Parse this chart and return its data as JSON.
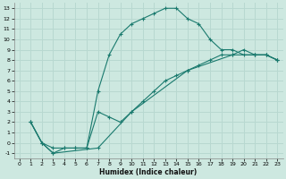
{
  "xlabel": "Humidex (Indice chaleur)",
  "bg_color": "#cde8e0",
  "grid_color": "#b8d8d0",
  "line_color": "#1a7a6e",
  "xlim": [
    -0.5,
    23.5
  ],
  "ylim": [
    -1.5,
    13.5
  ],
  "xticks": [
    0,
    1,
    2,
    3,
    4,
    5,
    6,
    7,
    8,
    9,
    10,
    11,
    12,
    13,
    14,
    15,
    16,
    17,
    18,
    19,
    20,
    21,
    22,
    23
  ],
  "yticks": [
    -1,
    0,
    1,
    2,
    3,
    4,
    5,
    6,
    7,
    8,
    9,
    10,
    11,
    12,
    13
  ],
  "curve1_x": [
    1,
    2,
    3,
    4,
    5,
    6,
    7,
    8,
    9,
    10,
    11,
    12,
    13,
    14,
    15,
    16,
    17,
    18,
    19,
    20,
    21,
    22,
    23
  ],
  "curve1_y": [
    2,
    0,
    -0.5,
    -0.5,
    -0.5,
    -0.5,
    5,
    8.5,
    10.5,
    11.5,
    12,
    12.5,
    13,
    13,
    12,
    11.5,
    10,
    9,
    9,
    8.5,
    8.5,
    8.5,
    8
  ],
  "curve2_x": [
    1,
    2,
    3,
    4,
    5,
    6,
    7,
    8,
    9,
    10,
    11,
    12,
    13,
    14,
    15,
    16,
    17,
    18,
    19,
    20,
    21,
    22,
    23
  ],
  "curve2_y": [
    2,
    0,
    -1,
    -0.5,
    -0.5,
    -0.5,
    3,
    2.5,
    2,
    3,
    4,
    5,
    6,
    6.5,
    7,
    7.5,
    8,
    8.5,
    8.5,
    9,
    8.5,
    8.5,
    8
  ],
  "curve3_x": [
    1,
    2,
    3,
    7,
    10,
    15,
    19,
    21,
    22,
    23
  ],
  "curve3_y": [
    2,
    0,
    -1,
    -0.5,
    3,
    7,
    8.5,
    8.5,
    8.5,
    8
  ]
}
